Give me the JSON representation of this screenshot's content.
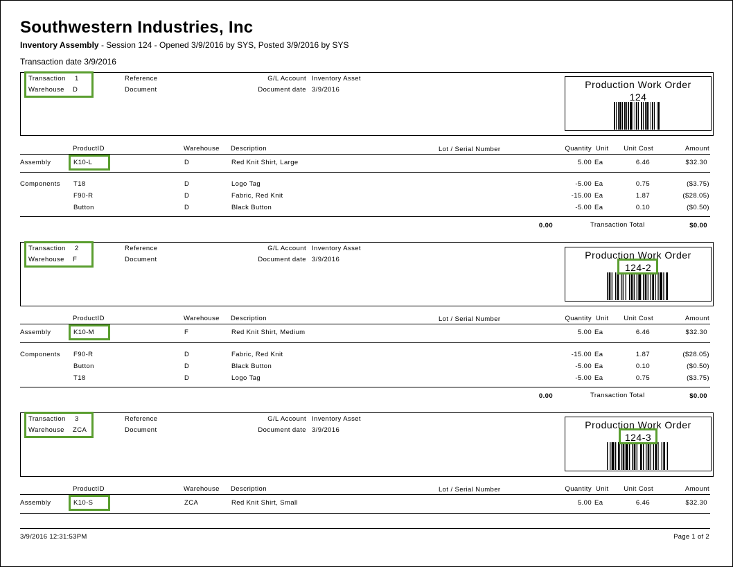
{
  "report": {
    "company": "Southwestern Industries, Inc",
    "module": "Inventory Assembly",
    "session_info": " - Session 124 - Opened 3/9/2016  by SYS, Posted 3/9/2016 by SYS",
    "transaction_date": "Transaction date 3/9/2016"
  },
  "labels": {
    "transaction": "Transaction",
    "warehouse": "Warehouse",
    "reference": "Reference",
    "document": "Document",
    "gl_account": "G/L Account",
    "document_date": "Document date",
    "pwo": "Production Work Order",
    "product_id": "ProductID",
    "warehouse_col": "Warehouse",
    "description": "Description",
    "lot_serial": "Lot / Serial Number",
    "quantity": "Quantity",
    "unit": "Unit",
    "unit_cost": "Unit Cost",
    "amount": "Amount",
    "assembly": "Assembly",
    "components": "Components",
    "transaction_total": "Transaction Total"
  },
  "transactions": [
    {
      "number": "1",
      "warehouse": "D",
      "gl_account": "Inventory Asset",
      "document_date": "3/9/2016",
      "pwo_number": "124",
      "assembly": {
        "product": "K10-L",
        "warehouse": "D",
        "description": "Red Knit Shirt, Large",
        "qty": "5.00",
        "unit": "Ea",
        "cost": "6.46",
        "amount": "$32.30"
      },
      "components": [
        {
          "product": "T18",
          "warehouse": "D",
          "description": "Logo Tag",
          "qty": "-5.00",
          "unit": "Ea",
          "cost": "0.75",
          "amount": "($3.75)"
        },
        {
          "product": "F90-R",
          "warehouse": "D",
          "description": "Fabric, Red Knit",
          "qty": "-15.00",
          "unit": "Ea",
          "cost": "1.87",
          "amount": "($28.05)"
        },
        {
          "product": "Button",
          "warehouse": "D",
          "description": "Black Button",
          "qty": "-5.00",
          "unit": "Ea",
          "cost": "0.10",
          "amount": "($0.50)"
        }
      ],
      "total_qty": "0.00",
      "total_amount": "$0.00"
    },
    {
      "number": "2",
      "warehouse": "F",
      "gl_account": "Inventory Asset",
      "document_date": "3/9/2016",
      "pwo_number": "124-2",
      "assembly": {
        "product": "K10-M",
        "warehouse": "F",
        "description": "Red Knit Shirt, Medium",
        "qty": "5.00",
        "unit": "Ea",
        "cost": "6.46",
        "amount": "$32.30"
      },
      "components": [
        {
          "product": "F90-R",
          "warehouse": "D",
          "description": "Fabric, Red Knit",
          "qty": "-15.00",
          "unit": "Ea",
          "cost": "1.87",
          "amount": "($28.05)"
        },
        {
          "product": "Button",
          "warehouse": "D",
          "description": "Black Button",
          "qty": "-5.00",
          "unit": "Ea",
          "cost": "0.10",
          "amount": "($0.50)"
        },
        {
          "product": "T18",
          "warehouse": "D",
          "description": "Logo Tag",
          "qty": "-5.00",
          "unit": "Ea",
          "cost": "0.75",
          "amount": "($3.75)"
        }
      ],
      "total_qty": "0.00",
      "total_amount": "$0.00"
    },
    {
      "number": "3",
      "warehouse": "ZCA",
      "gl_account": "Inventory Asset",
      "document_date": "3/9/2016",
      "pwo_number": "124-3",
      "assembly": {
        "product": "K10-S",
        "warehouse": "ZCA",
        "description": "Red Knit Shirt, Small",
        "qty": "5.00",
        "unit": "Ea",
        "cost": "6.46",
        "amount": "$32.30"
      }
    }
  ],
  "footer": {
    "datetime": "3/9/2016    12:31:53PM",
    "page": "Page 1 of 2"
  },
  "colors": {
    "highlight": "#5a9e2f"
  }
}
